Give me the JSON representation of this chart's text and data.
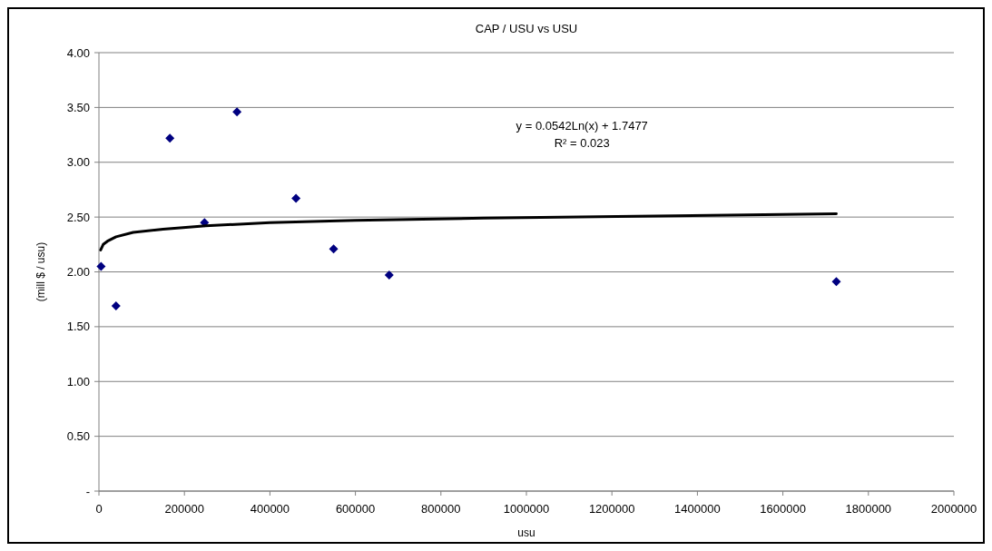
{
  "chart_data": {
    "type": "scatter",
    "title": "CAP / USU  vs USU",
    "xlabel": "usu",
    "ylabel": "(mill $ / usu)",
    "xlim": [
      0,
      2000000
    ],
    "xticks": [
      0,
      200000,
      400000,
      600000,
      800000,
      1000000,
      1200000,
      1400000,
      1600000,
      1800000,
      2000000
    ],
    "ylim": [
      0,
      4
    ],
    "yticks": [
      {
        "value": 0,
        "label": "-"
      },
      {
        "value": 0.5,
        "label": "0.50"
      },
      {
        "value": 1,
        "label": "1.00"
      },
      {
        "value": 1.5,
        "label": "1.50"
      },
      {
        "value": 2,
        "label": "2.00"
      },
      {
        "value": 2.5,
        "label": "2.50"
      },
      {
        "value": 3,
        "label": "3.00"
      },
      {
        "value": 3.5,
        "label": "3.50"
      },
      {
        "value": 4,
        "label": "4.00"
      }
    ],
    "grid": "y",
    "marker": "diamond",
    "series": [
      {
        "color": "#000080",
        "x": [
          5000,
          40000,
          166000,
          247000,
          323000,
          461000,
          549000,
          679000,
          1725000
        ],
        "values": [
          2.05,
          1.69,
          3.22,
          2.45,
          3.46,
          2.67,
          2.21,
          1.97,
          1.91
        ]
      },
      {
        "type": "line",
        "color": "#000000",
        "marker": "none",
        "line_style": "solid",
        "x": [
          4000,
          10000,
          20000,
          40000,
          80000,
          150000,
          250000,
          400000,
          600000,
          900000,
          1300000,
          1725000
        ],
        "values": [
          2.2,
          2.25,
          2.28,
          2.32,
          2.36,
          2.39,
          2.42,
          2.45,
          2.47,
          2.49,
          2.51,
          2.53
        ]
      }
    ],
    "annotations": [
      "y = 0.0542Ln(x) + 1.7477",
      "R² = 0.023"
    ]
  }
}
